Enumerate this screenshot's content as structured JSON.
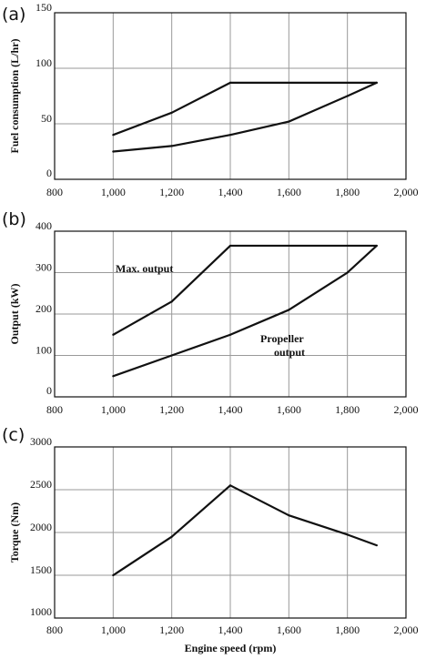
{
  "chart_data": [
    {
      "panel": "(a)",
      "type": "line",
      "ylabel": "Fuel consumption (L/hr)",
      "xlabel": "",
      "xlim": [
        800,
        2000
      ],
      "ylim": [
        0,
        150
      ],
      "xticks": [
        "800",
        "1,000",
        "1,200",
        "1,400",
        "1,600",
        "1,800",
        "2,000"
      ],
      "yticks": [
        "0",
        "50",
        "100",
        "150"
      ],
      "grid": "vertical",
      "series": [
        {
          "x": [
            1000,
            1200,
            1400,
            1900
          ],
          "y": [
            40,
            60,
            87,
            87
          ]
        },
        {
          "x": [
            1000,
            1200,
            1400,
            1600,
            1800,
            1900
          ],
          "y": [
            25,
            30,
            40,
            52,
            75,
            87
          ]
        }
      ],
      "annotations": []
    },
    {
      "panel": "(b)",
      "type": "line",
      "ylabel": "Output (kW)",
      "xlabel": "",
      "xlim": [
        800,
        2000
      ],
      "ylim": [
        0,
        400
      ],
      "xticks": [
        "800",
        "1,000",
        "1,200",
        "1,400",
        "1,600",
        "1,800",
        "2,000"
      ],
      "yticks": [
        "0",
        "100",
        "200",
        "300",
        "400"
      ],
      "grid": "vertical",
      "series": [
        {
          "name": "Max. output",
          "x": [
            1000,
            1200,
            1400,
            1900
          ],
          "y": [
            150,
            230,
            365,
            365
          ]
        },
        {
          "name": "Propeller output",
          "x": [
            1000,
            1200,
            1400,
            1600,
            1800,
            1900
          ],
          "y": [
            50,
            100,
            150,
            210,
            300,
            365
          ]
        }
      ],
      "annotations": [
        {
          "lines": [
            "Max. output"
          ],
          "x": 1010,
          "y": 310
        },
        {
          "lines": [
            "Propeller",
            "output"
          ],
          "x": 1500,
          "y": 190
        }
      ]
    },
    {
      "panel": "(c)",
      "type": "line",
      "ylabel": "Torque (Nm)",
      "xlabel": "Engine speed (rpm)",
      "xlim": [
        800,
        2000
      ],
      "ylim": [
        1000,
        3000
      ],
      "xticks": [
        "800",
        "1,000",
        "1,200",
        "1,400",
        "1,600",
        "1,800",
        "2,000"
      ],
      "yticks": [
        "1000",
        "1500",
        "2000",
        "2500",
        "3000"
      ],
      "grid": "vertical",
      "series": [
        {
          "x": [
            1000,
            1200,
            1400,
            1600,
            1800,
            1900
          ],
          "y": [
            1500,
            1950,
            2550,
            2200,
            1975,
            1850
          ]
        }
      ],
      "annotations": []
    }
  ]
}
